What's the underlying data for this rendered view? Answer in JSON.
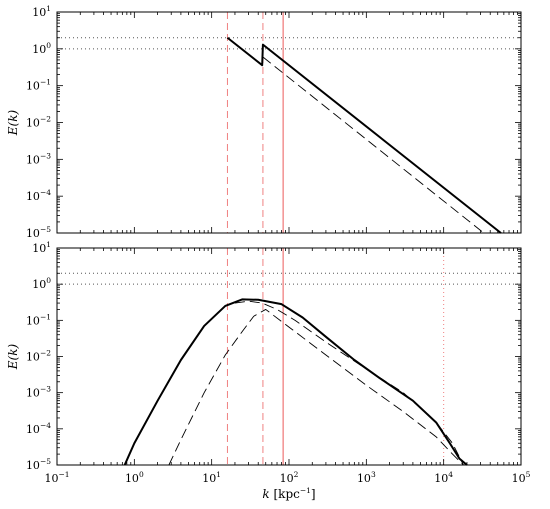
{
  "chart_data": [
    {
      "type": "line",
      "panel": "top",
      "title": "",
      "xlabel": "",
      "ylabel": "E(k)",
      "x_scale": "log",
      "y_scale": "log",
      "xlim": [
        0.1,
        100000
      ],
      "ylim": [
        1e-05,
        10
      ],
      "x_tick_labels": [],
      "y_tick_labels": [
        "10^-5",
        "10^-4",
        "10^-3",
        "10^-2",
        "10^-1",
        "10^0",
        "10^1"
      ],
      "grid": false,
      "legend": "none",
      "series": [
        {
          "style": "solid-thick",
          "color": "#000000",
          "x": [
            16,
            45,
            46,
            55000
          ],
          "y": [
            2.0,
            0.36,
            1.3,
            1e-05
          ]
        },
        {
          "style": "long-dash",
          "color": "#000000",
          "x": [
            46,
            33000
          ],
          "y": [
            0.6,
            1e-05
          ]
        }
      ],
      "reference_lines": [
        {
          "orientation": "horizontal",
          "value": 2.0,
          "style": "dotted",
          "color": "#555555"
        },
        {
          "orientation": "horizontal",
          "value": 1.0,
          "style": "dotted",
          "color": "#555555"
        },
        {
          "orientation": "vertical",
          "value": 16,
          "style": "dashed",
          "color": "#f08080"
        },
        {
          "orientation": "vertical",
          "value": 46,
          "style": "dashed",
          "color": "#f08080"
        },
        {
          "orientation": "vertical",
          "value": 84,
          "style": "solid",
          "color": "#f08080"
        }
      ]
    },
    {
      "type": "line",
      "panel": "bottom",
      "title": "",
      "xlabel": "k",
      "xlabel_unit": "[kpc",
      "xlabel_unit_exp": "−1",
      "xlabel_unit_close": "]",
      "ylabel": "E(k)",
      "x_scale": "log",
      "y_scale": "log",
      "xlim": [
        0.1,
        100000
      ],
      "ylim": [
        1e-05,
        10
      ],
      "x_tick_labels": [
        "10^-1",
        "10^0",
        "10^1",
        "10^2",
        "10^3",
        "10^4",
        "10^5"
      ],
      "y_tick_labels": [
        "10^-5",
        "10^-4",
        "10^-3",
        "10^-2",
        "10^-1",
        "10^0",
        "10^1"
      ],
      "grid": false,
      "legend": "none",
      "series": [
        {
          "style": "solid-thick",
          "color": "#000000",
          "x": [
            0.75,
            1,
            2,
            4,
            8,
            15,
            25,
            40,
            80,
            150,
            300,
            700,
            1500,
            4000,
            8000,
            12000,
            16000,
            20000
          ],
          "y": [
            1e-05,
            4e-05,
            0.0006,
            0.008,
            0.07,
            0.25,
            0.38,
            0.37,
            0.28,
            0.12,
            0.035,
            0.008,
            0.0025,
            0.0006,
            0.00015,
            4e-05,
            1.5e-05,
            1e-05
          ]
        },
        {
          "style": "long-dash",
          "color": "#000000",
          "x": [
            2.8,
            4,
            8,
            15,
            25,
            35,
            50,
            100,
            300,
            1000,
            3000,
            8000,
            13000,
            18000
          ],
          "y": [
            1e-05,
            5e-05,
            0.001,
            0.011,
            0.05,
            0.13,
            0.2,
            0.065,
            0.011,
            0.0016,
            0.0003,
            6e-05,
            2e-05,
            1e-05
          ]
        },
        {
          "style": "long-dash",
          "color": "#000000",
          "x": [
            20,
            30,
            45,
            70,
            120,
            300,
            1000,
            3000,
            8000,
            13000,
            18000
          ],
          "y": [
            0.3,
            0.34,
            0.3,
            0.2,
            0.1,
            0.025,
            0.0045,
            0.001,
            0.00015,
            4e-05,
            1e-05
          ]
        }
      ],
      "reference_lines": [
        {
          "orientation": "horizontal",
          "value": 2.0,
          "style": "dotted",
          "color": "#555555"
        },
        {
          "orientation": "horizontal",
          "value": 1.0,
          "style": "dotted",
          "color": "#555555"
        },
        {
          "orientation": "vertical",
          "value": 16,
          "style": "dashed",
          "color": "#f08080"
        },
        {
          "orientation": "vertical",
          "value": 46,
          "style": "dashed",
          "color": "#f08080"
        },
        {
          "orientation": "vertical",
          "value": 84,
          "style": "solid",
          "color": "#f08080"
        },
        {
          "orientation": "vertical",
          "value": 10000,
          "style": "dotted",
          "color": "#f08080"
        }
      ]
    }
  ]
}
